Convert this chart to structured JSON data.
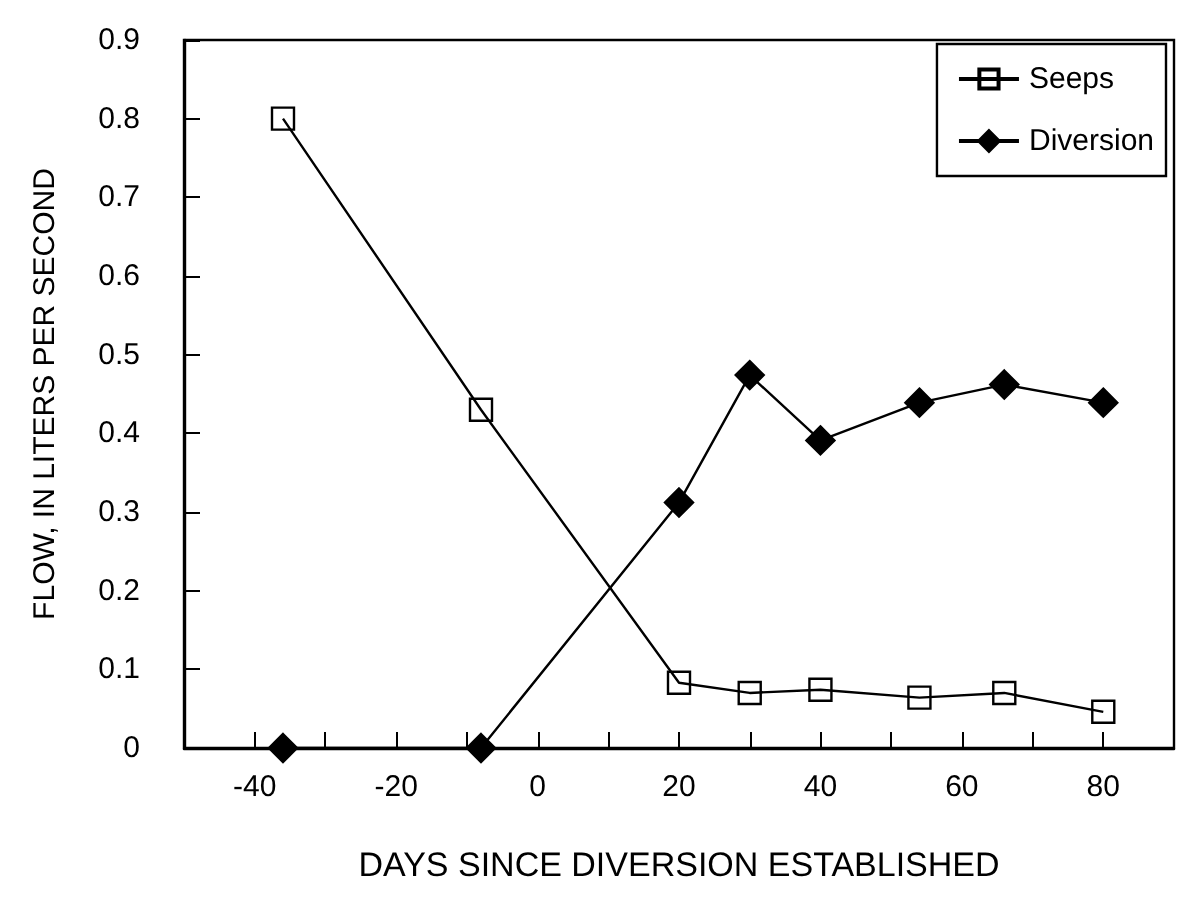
{
  "chart_data": {
    "type": "line",
    "xlabel": "DAYS SINCE DIVERSION ESTABLISHED",
    "ylabel": "FLOW, IN LITERS PER SECOND",
    "series": [
      {
        "name": "Seeps",
        "color": "#000000",
        "marker": "square",
        "x": [
          -36,
          -8,
          20,
          30,
          40,
          54,
          66,
          80
        ],
        "values": [
          0.8,
          0.43,
          0.083,
          0.07,
          0.074,
          0.064,
          0.07,
          0.046
        ]
      },
      {
        "name": "Diversion",
        "color": "#000000",
        "marker": "diamond",
        "x": [
          -36,
          -8,
          20,
          30,
          40,
          54,
          66,
          80
        ],
        "values": [
          0,
          0,
          0.312,
          0.474,
          0.391,
          0.439,
          0.462,
          0.439
        ]
      }
    ],
    "xlim": [
      -50,
      90
    ],
    "xticks": [
      -40,
      {
        "value": -30,
        "label": null
      },
      -20,
      {
        "value": -10,
        "label": null
      },
      0,
      {
        "value": 10,
        "label": null
      },
      20,
      {
        "value": 30,
        "label": null
      },
      40,
      {
        "value": 50,
        "label": null
      },
      60,
      {
        "value": 70,
        "label": null
      },
      80
    ],
    "ylim": [
      0,
      0.9
    ],
    "yticks": [
      0,
      0.1,
      0.2,
      0.3,
      0.4,
      0.5,
      0.6,
      0.7,
      0.8,
      0.9
    ],
    "grid": false,
    "legend": "top right",
    "line_style": "solid"
  }
}
